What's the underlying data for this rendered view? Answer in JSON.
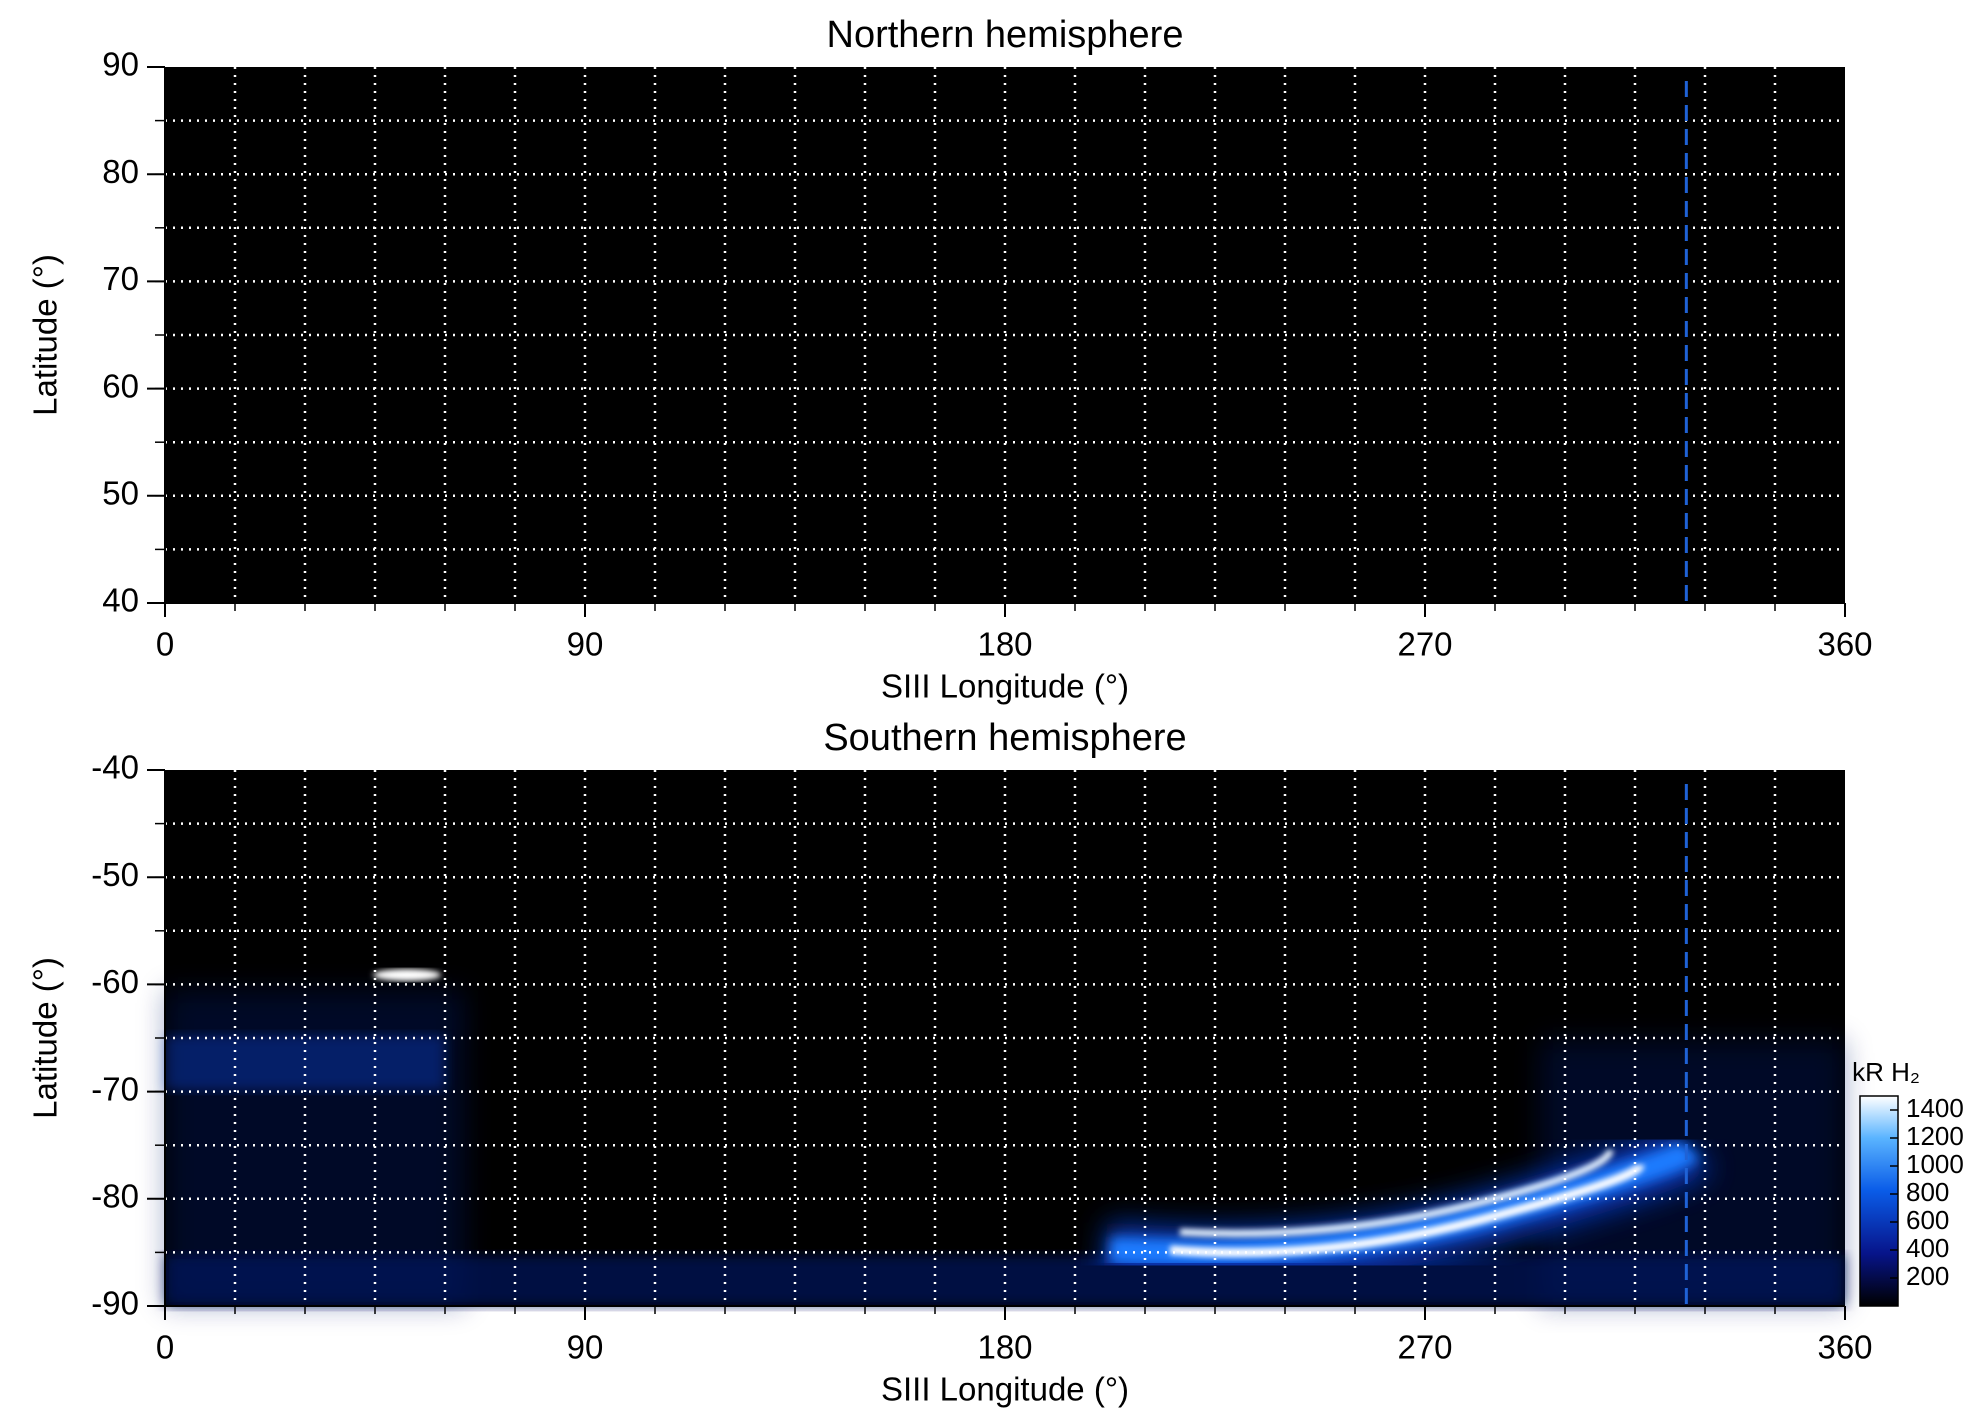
{
  "chart_data": [
    {
      "type": "heatmap",
      "title": "Northern hemisphere",
      "xlabel": "SIII Longitude (°)",
      "ylabel": "Latitude (°)",
      "xlim": [
        0,
        360
      ],
      "ylim": [
        40,
        90
      ],
      "xticks": [
        0,
        90,
        180,
        270,
        360
      ],
      "yticks": [
        40,
        50,
        60,
        70,
        80,
        90
      ],
      "xgrid": [
        15,
        30,
        45,
        60,
        75,
        90,
        105,
        120,
        135,
        150,
        165,
        180,
        195,
        210,
        225,
        240,
        255,
        270,
        285,
        300,
        315,
        330,
        345
      ],
      "ygrid": [
        45,
        50,
        55,
        60,
        65,
        70,
        75,
        80,
        85
      ],
      "vline": {
        "x": 326,
        "color": "#1f62d6"
      }
    },
    {
      "type": "heatmap",
      "title": "Southern hemisphere",
      "xlabel": "SIII Longitude (°)",
      "ylabel": "Latitude (°)",
      "xlim": [
        0,
        360
      ],
      "ylim": [
        -90,
        -40
      ],
      "xticks": [
        0,
        90,
        180,
        270,
        360
      ],
      "yticks": [
        -90,
        -80,
        -70,
        -60,
        -50,
        -40
      ],
      "xgrid": [
        15,
        30,
        45,
        60,
        75,
        90,
        105,
        120,
        135,
        150,
        165,
        180,
        195,
        210,
        225,
        240,
        255,
        270,
        285,
        300,
        315,
        330,
        345
      ],
      "ygrid": [
        -85,
        -80,
        -75,
        -70,
        -65,
        -60,
        -55,
        -50,
        -45
      ],
      "vline": {
        "x": 326,
        "color": "#1f62d6"
      },
      "colorbar": {
        "label": "kR H₂",
        "lim": [
          0,
          1500
        ],
        "ticks": [
          200,
          400,
          600,
          800,
          1000,
          1200,
          1400
        ]
      }
    }
  ]
}
